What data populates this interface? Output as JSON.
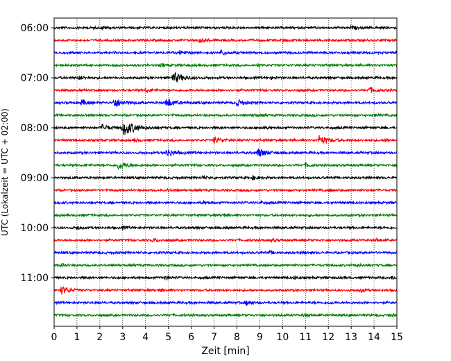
{
  "chart_data": {
    "type": "line",
    "title": "",
    "xlabel": "Zeit  [min]",
    "ylabel": "UTC (Lokalzeit = UTC + 02:00)",
    "xlim": [
      0,
      15
    ],
    "x_ticks": [
      "0",
      "1",
      "2",
      "3",
      "4",
      "5",
      "6",
      "7",
      "8",
      "9",
      "10",
      "11",
      "12",
      "13",
      "14",
      "15"
    ],
    "y_ticks": [
      {
        "label": "06:00",
        "row": 0
      },
      {
        "label": "07:00",
        "row": 4
      },
      {
        "label": "08:00",
        "row": 8
      },
      {
        "label": "09:00",
        "row": 12
      },
      {
        "label": "10:00",
        "row": 16
      },
      {
        "label": "11:00",
        "row": 20
      }
    ],
    "row_interval_min": 15,
    "grid": "vertical-dotted",
    "colors": [
      "#000000",
      "#ff0000",
      "#0000ff",
      "#008000"
    ],
    "traces": [
      {
        "start": "06:00",
        "color": "#000000",
        "events": [
          [
            2.1,
            0.15
          ],
          [
            9.0,
            0.1
          ],
          [
            13.0,
            0.15
          ]
        ]
      },
      {
        "start": "06:15",
        "color": "#ff0000",
        "events": [
          [
            6.3,
            0.25
          ],
          [
            10.0,
            0.15
          ]
        ]
      },
      {
        "start": "06:30",
        "color": "#0000ff",
        "events": [
          [
            5.5,
            0.2
          ],
          [
            7.3,
            0.25
          ],
          [
            15.0,
            0.15
          ]
        ]
      },
      {
        "start": "06:45",
        "color": "#008000",
        "events": [
          [
            4.7,
            0.15
          ],
          [
            8.9,
            0.1
          ]
        ]
      },
      {
        "start": "07:00",
        "color": "#000000",
        "events": [
          [
            1.1,
            0.2
          ],
          [
            5.2,
            0.6
          ],
          [
            9.5,
            0.1
          ]
        ]
      },
      {
        "start": "07:15",
        "color": "#ff0000",
        "events": [
          [
            4.0,
            0.2
          ],
          [
            13.8,
            0.3
          ]
        ]
      },
      {
        "start": "07:30",
        "color": "#0000ff",
        "events": [
          [
            1.2,
            0.3
          ],
          [
            2.6,
            0.55
          ],
          [
            4.9,
            0.5
          ],
          [
            8.0,
            0.35
          ]
        ]
      },
      {
        "start": "07:45",
        "color": "#008000",
        "events": [
          [
            8.7,
            0.15
          ],
          [
            14.0,
            0.1
          ]
        ]
      },
      {
        "start": "08:00",
        "color": "#000000",
        "events": [
          [
            2.1,
            0.35
          ],
          [
            3.0,
            0.85
          ],
          [
            9.0,
            0.15
          ]
        ]
      },
      {
        "start": "08:15",
        "color": "#ff0000",
        "events": [
          [
            3.5,
            0.15
          ],
          [
            7.0,
            0.35
          ],
          [
            11.6,
            0.5
          ],
          [
            14.5,
            0.15
          ]
        ]
      },
      {
        "start": "08:30",
        "color": "#0000ff",
        "events": [
          [
            4.9,
            0.45
          ],
          [
            8.9,
            0.5
          ]
        ]
      },
      {
        "start": "08:45",
        "color": "#008000",
        "events": [
          [
            2.8,
            0.45
          ],
          [
            11.0,
            0.2
          ]
        ]
      },
      {
        "start": "09:00",
        "color": "#000000",
        "events": [
          [
            6.5,
            0.15
          ],
          [
            8.7,
            0.2
          ]
        ]
      },
      {
        "start": "09:15",
        "color": "#ff0000",
        "events": [
          [
            5.0,
            0.15
          ],
          [
            12.0,
            0.15
          ]
        ]
      },
      {
        "start": "09:30",
        "color": "#0000ff",
        "events": [
          [
            6.5,
            0.15
          ],
          [
            9.0,
            0.15
          ]
        ]
      },
      {
        "start": "09:45",
        "color": "#008000",
        "events": [
          [
            7.4,
            0.15
          ],
          [
            11.0,
            0.1
          ]
        ]
      },
      {
        "start": "10:00",
        "color": "#000000",
        "events": [
          [
            1.0,
            0.2
          ],
          [
            3.0,
            0.15
          ],
          [
            7.5,
            0.1
          ]
        ]
      },
      {
        "start": "10:15",
        "color": "#ff0000",
        "events": [
          [
            4.3,
            0.2
          ],
          [
            9.5,
            0.15
          ],
          [
            14.1,
            0.15
          ]
        ]
      },
      {
        "start": "10:30",
        "color": "#0000ff",
        "events": [
          [
            9.4,
            0.15
          ],
          [
            11.0,
            0.1
          ]
        ]
      },
      {
        "start": "10:45",
        "color": "#008000",
        "events": [
          [
            0.3,
            0.15
          ],
          [
            13.2,
            0.15
          ]
        ]
      },
      {
        "start": "11:00",
        "color": "#000000",
        "events": [
          [
            4.8,
            0.2
          ],
          [
            10.5,
            0.15
          ],
          [
            14.8,
            0.2
          ]
        ]
      },
      {
        "start": "11:15",
        "color": "#ff0000",
        "events": [
          [
            0.3,
            0.45
          ],
          [
            4.6,
            0.15
          ],
          [
            13.4,
            0.2
          ]
        ]
      },
      {
        "start": "11:30",
        "color": "#0000ff",
        "events": [
          [
            8.4,
            0.25
          ],
          [
            12.0,
            0.1
          ]
        ]
      },
      {
        "start": "11:45",
        "color": "#008000",
        "events": [
          [
            10.9,
            0.2
          ],
          [
            14.7,
            0.15
          ]
        ]
      }
    ]
  }
}
